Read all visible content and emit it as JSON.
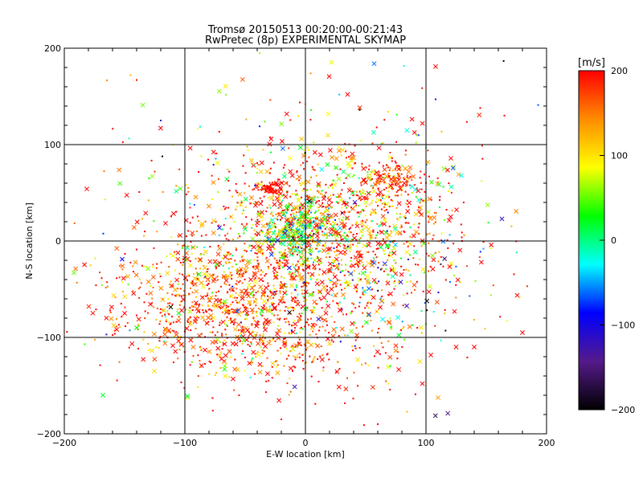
{
  "chart_data": {
    "type": "scatter",
    "title": "Tromsø 20150513 00:20:00-00:21:43",
    "subtitle": "RwPretec (8p) EXPERIMENTAL SKYMAP",
    "xlabel": "E-W location [km]",
    "ylabel": "N-S location [km]",
    "xlim": [
      -200,
      200
    ],
    "ylim": [
      -200,
      200
    ],
    "x_ticks": [
      -200,
      -100,
      0,
      100,
      200
    ],
    "y_ticks": [
      -200,
      -100,
      0,
      100,
      200
    ],
    "x_tick_labels": [
      "−200",
      "−100",
      "0",
      "100",
      "200"
    ],
    "y_tick_labels": [
      "−200",
      "−100",
      "0",
      "100",
      "200"
    ],
    "grid_lines": [
      -100,
      0,
      100
    ],
    "grid": true,
    "colorbar": {
      "label": "[m/s]",
      "min": -200,
      "max": 200,
      "ticks": [
        200,
        100,
        0,
        -100,
        -200
      ],
      "tick_labels": [
        "200",
        "100",
        "0",
        "−100",
        "−200"
      ],
      "colormap": [
        "#000000",
        "#551a8b",
        "#0000ff",
        "#00ffff",
        "#00ff00",
        "#ffff00",
        "#ff8c00",
        "#ff0000"
      ]
    },
    "markers": {
      "dot": "+",
      "cross": "×"
    },
    "clusters": [
      {
        "cx": 0,
        "cy": 0,
        "sx": 60,
        "sy": 50,
        "n": 900,
        "vmean": 150,
        "vsd": 90
      },
      {
        "cx": -5,
        "cy": 10,
        "sx": 14,
        "sy": 14,
        "n": 260,
        "vmean": 20,
        "vsd": 60
      },
      {
        "cx": -70,
        "cy": -60,
        "sx": 45,
        "sy": 30,
        "n": 650,
        "vmean": 170,
        "vsd": 50
      },
      {
        "cx": 30,
        "cy": 40,
        "sx": 50,
        "sy": 35,
        "n": 450,
        "vmean": 150,
        "vsd": 80
      },
      {
        "cx": 75,
        "cy": 65,
        "sx": 10,
        "sy": 8,
        "n": 120,
        "vmean": 180,
        "vsd": 40
      },
      {
        "cx": -30,
        "cy": 55,
        "sx": 6,
        "sy": 3,
        "n": 60,
        "vmean": 195,
        "vsd": 10
      },
      {
        "cx": -20,
        "cy": -110,
        "sx": 60,
        "sy": 25,
        "n": 300,
        "vmean": 170,
        "vsd": 60
      },
      {
        "cx": 40,
        "cy": -40,
        "sx": 40,
        "sy": 40,
        "n": 250,
        "vmean": 100,
        "vsd": 150
      },
      {
        "cx": 0,
        "cy": 0,
        "sx": 110,
        "sy": 90,
        "n": 200,
        "vmean": 100,
        "vsd": 160
      }
    ],
    "scattered_points": [
      {
        "x": 57,
        "y": 184,
        "v": -60,
        "marker": "cross"
      },
      {
        "x": 108,
        "y": 181,
        "v": 200,
        "marker": "cross"
      },
      {
        "x": -145,
        "y": 172,
        "v": 120,
        "marker": "dot"
      },
      {
        "x": -140,
        "y": 167,
        "v": 200,
        "marker": "dot"
      },
      {
        "x": 35,
        "y": 152,
        "v": 200,
        "marker": "cross"
      },
      {
        "x": 0,
        "y": 142,
        "v": 110,
        "marker": "dot"
      },
      {
        "x": -120,
        "y": 125,
        "v": -120,
        "marker": "dot"
      },
      {
        "x": 97,
        "y": 122,
        "v": 200,
        "marker": "cross"
      },
      {
        "x": -38,
        "y": 119,
        "v": -80,
        "marker": "dot"
      },
      {
        "x": -125,
        "y": 72,
        "v": 180,
        "marker": "dot"
      },
      {
        "x": 163,
        "y": 23,
        "v": -120,
        "marker": "cross"
      },
      {
        "x": 180,
        "y": -95,
        "v": 200,
        "marker": "cross"
      },
      {
        "x": -192,
        "y": -33,
        "v": 50,
        "marker": "cross"
      },
      {
        "x": -168,
        "y": -160,
        "v": 20,
        "marker": "cross"
      },
      {
        "x": -165,
        "y": -97,
        "v": -120,
        "marker": "dot"
      },
      {
        "x": -140,
        "y": -90,
        "v": 30,
        "marker": "cross"
      },
      {
        "x": -150,
        "y": -75,
        "v": 200,
        "marker": "cross"
      },
      {
        "x": 125,
        "y": -110,
        "v": 200,
        "marker": "cross"
      },
      {
        "x": 140,
        "y": -110,
        "v": 200,
        "marker": "cross"
      },
      {
        "x": 95,
        "y": -125,
        "v": 100,
        "marker": "cross"
      },
      {
        "x": 97,
        "y": -148,
        "v": 200,
        "marker": "cross"
      },
      {
        "x": 115,
        "y": 75,
        "v": 60,
        "marker": "cross"
      },
      {
        "x": 130,
        "y": 0,
        "v": 200,
        "marker": "dot"
      },
      {
        "x": 145,
        "y": 138,
        "v": 200,
        "marker": "dot"
      },
      {
        "x": -20,
        "y": -185,
        "v": 200,
        "marker": "dot"
      },
      {
        "x": 60,
        "y": -190,
        "v": 200,
        "marker": "dot"
      }
    ]
  }
}
